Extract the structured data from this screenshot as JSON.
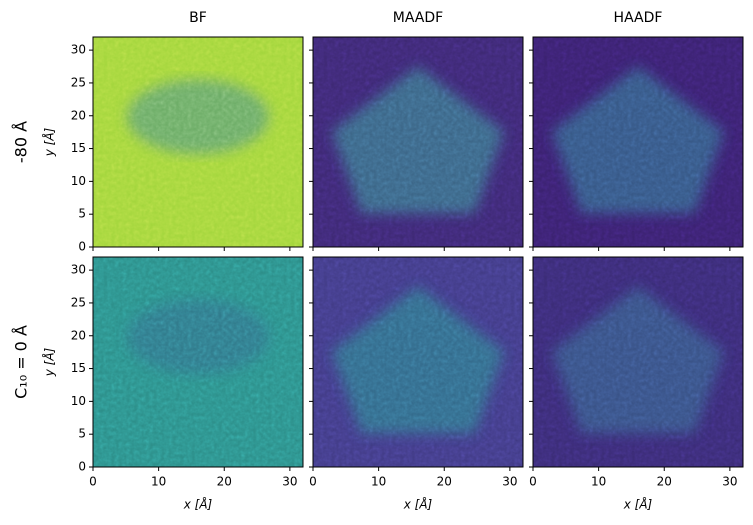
{
  "chart_data": {
    "type": "image",
    "columns": [
      "BF",
      "MAADF",
      "HAADF"
    ],
    "rows": [
      "-80 Å",
      "C₁₀ = 0 Å"
    ],
    "xlabel": "x [Å]",
    "ylabel": "y [Å]",
    "xlim": [
      0,
      32
    ],
    "xticks": [
      0,
      10,
      20,
      30
    ],
    "ylim": [
      0,
      32
    ],
    "yticks": [
      0,
      5,
      10,
      15,
      20,
      25,
      30
    ]
  }
}
